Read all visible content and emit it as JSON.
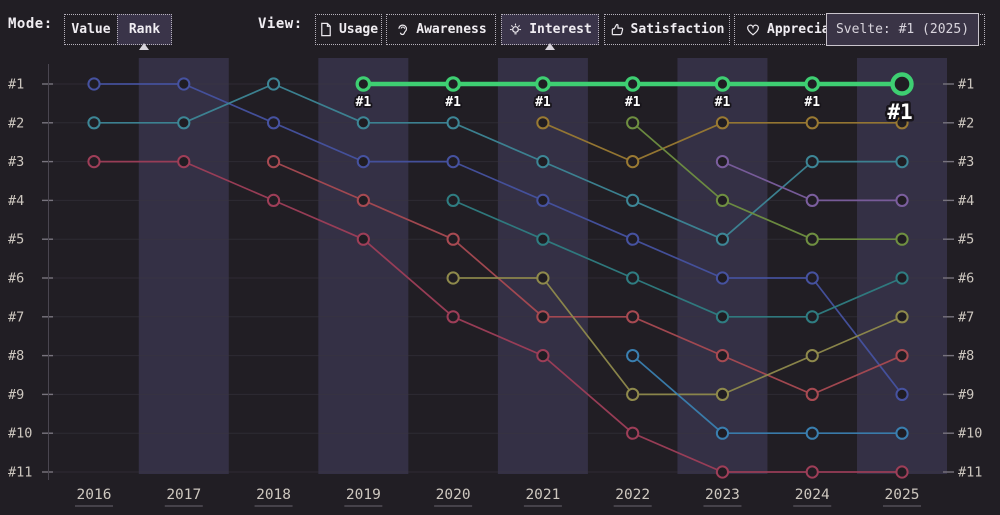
{
  "toolbar": {
    "mode_label": "Mode:",
    "mode_options": [
      {
        "label": "Value",
        "selected": false
      },
      {
        "label": "Rank",
        "selected": true
      }
    ],
    "view_label": "View:",
    "views": [
      {
        "label": "Usage",
        "icon": "document-icon",
        "selected": false
      },
      {
        "label": "Awareness",
        "icon": "ear-icon",
        "selected": false
      },
      {
        "label": "Interest",
        "icon": "lightbulb-icon",
        "selected": true
      },
      {
        "label": "Satisfaction",
        "icon": "thumbs-up-icon",
        "selected": false
      },
      {
        "label": "Appreciation",
        "icon": "heart-icon",
        "selected": false
      }
    ]
  },
  "tooltip": {
    "text": "Svelte: #1 (2025)"
  },
  "chart_data": {
    "type": "line",
    "subtype": "bump-rank-chart",
    "x": [
      "2016",
      "2017",
      "2018",
      "2019",
      "2020",
      "2021",
      "2022",
      "2023",
      "2024",
      "2025"
    ],
    "xlabel": "",
    "ylabel": "rank",
    "y_axis_labels": [
      "#1",
      "#2",
      "#3",
      "#4",
      "#5",
      "#6",
      "#7",
      "#8",
      "#9",
      "#10",
      "#11"
    ],
    "y_axis_sides": "both",
    "grid": "horizontal",
    "banding": "alternate-year-columns",
    "band_color": "#343045",
    "background_color": "#211e24",
    "series": [
      {
        "name": "series-indigo",
        "color": "#4652A0",
        "start_year": "2016",
        "ranks": [
          1,
          1,
          2,
          3,
          3,
          4,
          5,
          6,
          6,
          9
        ],
        "highlight": false
      },
      {
        "name": "series-teal",
        "color": "#3D8696",
        "start_year": "2016",
        "ranks": [
          2,
          2,
          1,
          2,
          2,
          3,
          4,
          5,
          3,
          3
        ],
        "highlight": false
      },
      {
        "name": "series-crimson",
        "color": "#9E3E58",
        "start_year": "2016",
        "ranks": [
          3,
          3,
          4,
          5,
          7,
          8,
          10,
          11,
          11,
          11
        ],
        "highlight": false
      },
      {
        "name": "series-red",
        "color": "#A84A52",
        "start_year": "2018",
        "ranks": [
          3,
          4,
          5,
          7,
          7,
          8,
          9,
          8
        ],
        "highlight": false
      },
      {
        "name": "series-cyan",
        "color": "#2F7D82",
        "start_year": "2020",
        "ranks": [
          4,
          5,
          6,
          7,
          7,
          6
        ],
        "highlight": false
      },
      {
        "name": "series-olive",
        "color": "#8F8A4C",
        "start_year": "2020",
        "ranks": [
          6,
          6,
          9,
          9,
          8,
          7
        ],
        "highlight": false
      },
      {
        "name": "series-gold",
        "color": "#9A7A33",
        "start_year": "2021",
        "ranks": [
          2,
          3,
          2,
          2,
          2
        ],
        "highlight": false
      },
      {
        "name": "series-lime",
        "color": "#6F8F41",
        "start_year": "2022",
        "ranks": [
          2,
          4,
          5,
          5
        ],
        "highlight": false
      },
      {
        "name": "series-blue",
        "color": "#3A7FB0",
        "start_year": "2022",
        "ranks": [
          8,
          10,
          10,
          10
        ],
        "highlight": false
      },
      {
        "name": "series-purple",
        "color": "#7B5E9E",
        "start_year": "2023",
        "ranks": [
          3,
          4,
          4
        ],
        "highlight": false
      },
      {
        "name": "Svelte",
        "color": "#3ECF72",
        "start_year": "2019",
        "ranks": [
          1,
          1,
          1,
          1,
          1,
          1,
          1
        ],
        "highlight": true,
        "point_label": "#1",
        "final_point_label": "#1",
        "final_value": "#1 (2025)"
      }
    ]
  }
}
